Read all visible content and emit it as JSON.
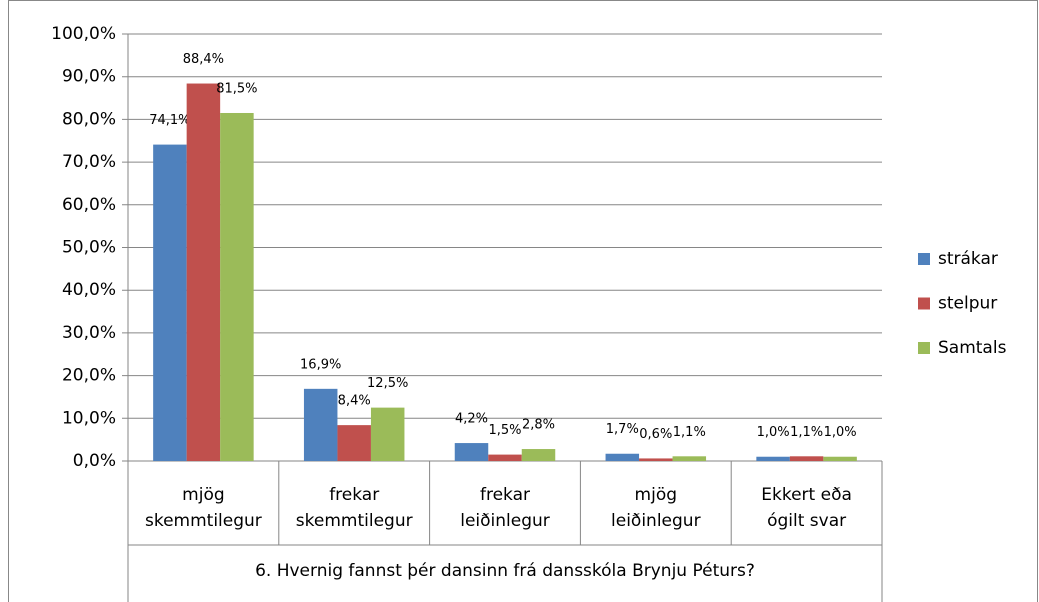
{
  "chart_data": {
    "type": "bar",
    "xlabel": "6. Hvernig fannst þér dansinn frá dansskóla Brynju Péturs?",
    "categories": [
      "mjög\nskemmtilegur",
      "frekar\nskemmtilegur",
      "frekar\nleiðinlegur",
      "mjög\nleiðinlegur",
      "Ekkert eða\nógilt svar"
    ],
    "series": [
      {
        "name": "strákar",
        "color": "#4f81bd",
        "values": [
          74.1,
          16.9,
          4.2,
          1.7,
          1.0
        ],
        "value_labels": [
          "74,1%",
          "16,9%",
          "4,2%",
          "1,7%",
          "1,0%"
        ]
      },
      {
        "name": "stelpur",
        "color": "#c0504d",
        "values": [
          88.4,
          8.4,
          1.5,
          0.6,
          1.1
        ],
        "value_labels": [
          "88,4%",
          "8,4%",
          "1,5%",
          "0,6%",
          "1,1%"
        ]
      },
      {
        "name": "Samtals",
        "color": "#9bbb59",
        "values": [
          81.5,
          12.5,
          2.8,
          1.1,
          1.0
        ],
        "value_labels": [
          "81,5%",
          "12,5%",
          "2,8%",
          "1,1%",
          "1,0%"
        ]
      }
    ],
    "ylim": [
      0,
      100
    ],
    "yticks": [
      {
        "value": 0,
        "label": "0,0%"
      },
      {
        "value": 10,
        "label": "10,0%"
      },
      {
        "value": 20,
        "label": "20,0%"
      },
      {
        "value": 30,
        "label": "30,0%"
      },
      {
        "value": 40,
        "label": "40,0%"
      },
      {
        "value": 50,
        "label": "50,0%"
      },
      {
        "value": 60,
        "label": "60,0%"
      },
      {
        "value": 70,
        "label": "70,0%"
      },
      {
        "value": 80,
        "label": "80,0%"
      },
      {
        "value": 90,
        "label": "90,0%"
      },
      {
        "value": 100,
        "label": "100,0%"
      }
    ],
    "grid": true,
    "legend": "right"
  }
}
